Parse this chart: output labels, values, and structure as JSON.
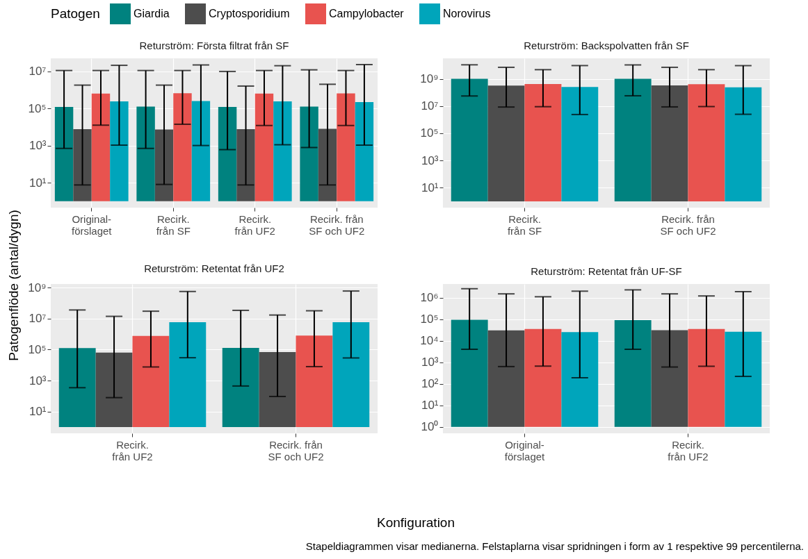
{
  "chart_data": [
    {
      "type": "bar",
      "title": "Returström: Första filtrat från SF",
      "ylabel": "Patogenflöde (antal/dygn)",
      "legend_title": "Patogen",
      "legend": "top",
      "log": true,
      "grid": true,
      "categories": [
        "Original-\nförslaget",
        "Recirk.\nfrån SF",
        "Recirk.\nfrån UF2",
        "Recirk. från\nSF och UF2"
      ],
      "ylim": [
        0.45,
        50000000
      ],
      "yticks": [
        {
          "value": 10,
          "label": "10¹"
        },
        {
          "value": 1000,
          "label": "10³"
        },
        {
          "value": 100000,
          "label": "10⁵"
        },
        {
          "value": 10000000,
          "label": "10⁷"
        }
      ],
      "series": [
        {
          "name": "Giardia",
          "color": "#00827f",
          "base": [
            1,
            1,
            1,
            1
          ],
          "values": [
            120000,
            125000,
            120000,
            125000
          ],
          "errors": [
            [
              700,
              11000000
            ],
            [
              700,
              11000000
            ],
            [
              600,
              9800000
            ],
            [
              780,
              12000000
            ]
          ]
        },
        {
          "name": "Cryptosporidium",
          "color": "#4d4d4d",
          "base": [
            1,
            1,
            1,
            1
          ],
          "values": [
            7600,
            7300,
            7600,
            8000
          ],
          "errors": [
            [
              7.5,
              1800000
            ],
            [
              8,
              1800000
            ],
            [
              7.5,
              1600000
            ],
            [
              7.5,
              2000000
            ]
          ]
        },
        {
          "name": "Campylobacter",
          "color": "#e8534f",
          "base": [
            1,
            1,
            1,
            1
          ],
          "values": [
            630000,
            660000,
            630000,
            650000
          ],
          "errors": [
            [
              12500,
              11000000
            ],
            [
              14000,
              11000000
            ],
            [
              12000,
              11000000
            ],
            [
              12000,
              11000000
            ]
          ]
        },
        {
          "name": "Norovirus",
          "color": "#00a5bb",
          "base": [
            1,
            1,
            1,
            1
          ],
          "values": [
            240000,
            250000,
            240000,
            220000
          ],
          "errors": [
            [
              1050,
              21000000
            ],
            [
              1000,
              22000000
            ],
            [
              1100,
              20000000
            ],
            [
              1050,
              23000000
            ]
          ]
        }
      ]
    },
    {
      "type": "bar",
      "title": "Returström: Backspolvatten från SF",
      "log": true,
      "grid": true,
      "categories": [
        "Recirk.\nfrån SF",
        "Recirk. från\nSF och UF2"
      ],
      "ylim": [
        0.35,
        32000000000
      ],
      "yticks": [
        {
          "value": 10,
          "label": "10¹"
        },
        {
          "value": 1000,
          "label": "10³"
        },
        {
          "value": 100000,
          "label": "10⁵"
        },
        {
          "value": 10000000,
          "label": "10⁷"
        },
        {
          "value": 1000000000,
          "label": "10⁹"
        }
      ],
      "series": [
        {
          "color": "#00827f",
          "base": [
            1,
            1
          ],
          "values": [
            1000000000,
            1000000000
          ],
          "errors": [
            [
              55000000,
              10700000000
            ],
            [
              57000000,
              10500000000
            ]
          ]
        },
        {
          "color": "#4d4d4d",
          "base": [
            1,
            1
          ],
          "values": [
            320000000,
            330000000
          ],
          "errors": [
            [
              8500000,
              7000000000
            ],
            [
              8700000,
              7000000000
            ]
          ]
        },
        {
          "color": "#e8534f",
          "base": [
            1,
            1
          ],
          "values": [
            410000000,
            400000000
          ],
          "errors": [
            [
              9000000,
              4700000000
            ],
            [
              9200000,
              4700000000
            ]
          ]
        },
        {
          "color": "#00a5bb",
          "base": [
            1,
            1
          ],
          "values": [
            250000000,
            240000000
          ],
          "errors": [
            [
              2400000,
              9400000000
            ],
            [
              2500000,
              9300000000
            ]
          ]
        }
      ]
    },
    {
      "type": "bar",
      "title": "Returström: Retentat från UF2",
      "xlabel": "Konfiguration",
      "log": true,
      "grid": true,
      "categories": [
        "Recirk.\nfrån UF2",
        "Recirk. från\nSF och UF2"
      ],
      "ylim": [
        0.4,
        1700000000
      ],
      "yticks": [
        {
          "value": 10,
          "label": "10¹"
        },
        {
          "value": 1000,
          "label": "10³"
        },
        {
          "value": 100000,
          "label": "10⁵"
        },
        {
          "value": 10000000,
          "label": "10⁷"
        },
        {
          "value": 1000000000,
          "label": "10⁹"
        }
      ],
      "series": [
        {
          "color": "#00827f",
          "base": [
            1,
            1
          ],
          "values": [
            125000,
            130000
          ],
          "errors": [
            [
              350,
              36000000
            ],
            [
              450,
              34000000
            ]
          ]
        },
        {
          "color": "#4d4d4d",
          "base": [
            1,
            1
          ],
          "values": [
            65000,
            70000
          ],
          "errors": [
            [
              80,
              14000000
            ],
            [
              95,
              17000000
            ]
          ]
        },
        {
          "color": "#e8534f",
          "base": [
            1,
            1
          ],
          "values": [
            760000,
            800000
          ],
          "errors": [
            [
              7600,
              30000000
            ],
            [
              8000,
              32000000
            ]
          ]
        },
        {
          "color": "#00a5bb",
          "base": [
            1,
            1
          ],
          "values": [
            5900000,
            5800000
          ],
          "errors": [
            [
              30000,
              560000000
            ],
            [
              29000,
              600000000
            ]
          ]
        }
      ]
    },
    {
      "type": "bar",
      "title": "Returström: Retentat från UF-SF",
      "annotations": [
        "Stapeldiagrammen visar medianerna. Felstaplarna visar spridningen i form av 1 respektive 99 percentilerna."
      ],
      "log": true,
      "grid": true,
      "categories": [
        "Original-\nförslaget",
        "Recirk.\nfrån UF2"
      ],
      "ylim": [
        0.5,
        4300000
      ],
      "yticks": [
        {
          "value": 1,
          "label": "10⁰"
        },
        {
          "value": 10,
          "label": "10¹"
        },
        {
          "value": 100,
          "label": "10²"
        },
        {
          "value": 1000,
          "label": "10³"
        },
        {
          "value": 10000,
          "label": "10⁴"
        },
        {
          "value": 100000,
          "label": "10⁵"
        },
        {
          "value": 1000000,
          "label": "10⁶"
        }
      ],
      "series": [
        {
          "color": "#00827f",
          "base": [
            1,
            1
          ],
          "values": [
            93000,
            90000
          ],
          "errors": [
            [
              4000,
              2600000
            ],
            [
              4000,
              2300000
            ]
          ]
        },
        {
          "color": "#4d4d4d",
          "base": [
            1,
            1
          ],
          "values": [
            30000,
            31000
          ],
          "errors": [
            [
              630,
              1500000
            ],
            [
              600,
              1500000
            ]
          ]
        },
        {
          "color": "#e8534f",
          "base": [
            1,
            1
          ],
          "values": [
            35000,
            35000
          ],
          "errors": [
            [
              660,
              1100000
            ],
            [
              650,
              1200000
            ]
          ]
        },
        {
          "color": "#00a5bb",
          "base": [
            1,
            1
          ],
          "values": [
            25000,
            26000
          ],
          "errors": [
            [
              190,
              2000000
            ],
            [
              220,
              1900000
            ]
          ]
        }
      ]
    }
  ]
}
